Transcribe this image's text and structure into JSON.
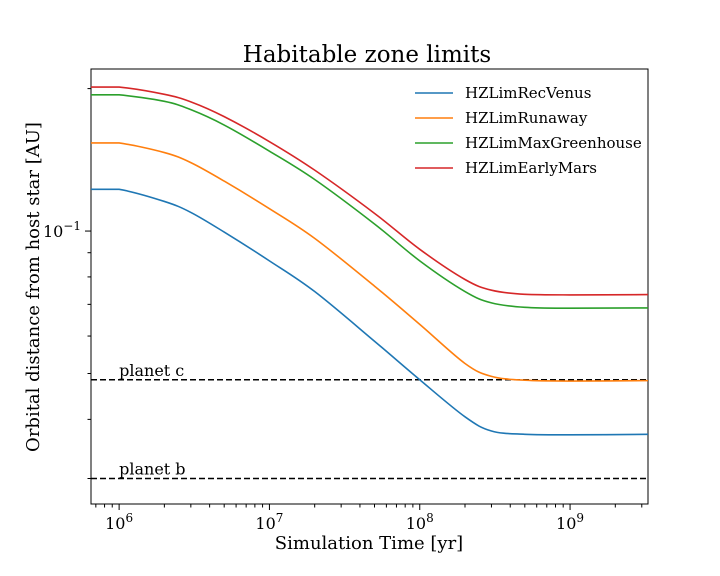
{
  "chart_data": {
    "type": "line",
    "title": "Habitable zone limits",
    "xlabel": "Simulation Time [yr]",
    "ylabel": "Orbital distance from host star [AU]",
    "xscale": "log",
    "yscale": "log",
    "xlim": [
      650000,
      3300000000
    ],
    "ylim": [
      0.0265,
      0.22
    ],
    "xticks": [
      {
        "value": 1000000,
        "base": "10",
        "exp": "6"
      },
      {
        "value": 10000000,
        "base": "10",
        "exp": "7"
      },
      {
        "value": 100000000,
        "base": "10",
        "exp": "8"
      },
      {
        "value": 1000000000,
        "base": "10",
        "exp": "9"
      }
    ],
    "yticks": [
      {
        "value": 0.1,
        "base": "10",
        "exp": "−1"
      }
    ],
    "x": [
      650000,
      1000000,
      2000000,
      3000000,
      5000000,
      10000000,
      20000000,
      50000000,
      100000000,
      200000000,
      300000000,
      500000000,
      1000000000,
      3300000000
    ],
    "series": [
      {
        "name": "HZLimRecVenus",
        "color": "#1f77b4",
        "values": [
          0.1225,
          0.1225,
          0.1155,
          0.1095,
          0.0995,
          0.0865,
          0.0745,
          0.0585,
          0.0485,
          0.0405,
          0.0378,
          0.0372,
          0.0371,
          0.0372
        ]
      },
      {
        "name": "HZLimRunaway",
        "color": "#ff7f0e",
        "values": [
          0.1535,
          0.1535,
          0.1465,
          0.1395,
          0.1275,
          0.1115,
          0.0965,
          0.0765,
          0.0635,
          0.0525,
          0.0493,
          0.0484,
          0.0482,
          0.0483
        ]
      },
      {
        "name": "HZLimMaxGreenhouse",
        "color": "#2ca02c",
        "values": [
          0.194,
          0.194,
          0.188,
          0.1805,
          0.1675,
          0.1475,
          0.1285,
          0.1035,
          0.0865,
          0.0745,
          0.0705,
          0.069,
          0.0687,
          0.0688
        ]
      },
      {
        "name": "HZLimEarlyMars",
        "color": "#d62728",
        "values": [
          0.2015,
          0.2015,
          0.1945,
          0.1875,
          0.1745,
          0.1545,
          0.1345,
          0.109,
          0.0915,
          0.079,
          0.075,
          0.0735,
          0.0733,
          0.0734
        ]
      }
    ],
    "hlines": [
      {
        "label": "planet c",
        "y": 0.0485,
        "color": "#000000",
        "style": "dashed",
        "label_x": 1000000
      },
      {
        "label": "planet b",
        "y": 0.03,
        "color": "#000000",
        "style": "dashed",
        "label_x": 1000000
      }
    ],
    "grid": false,
    "legend_position": "top-right"
  }
}
